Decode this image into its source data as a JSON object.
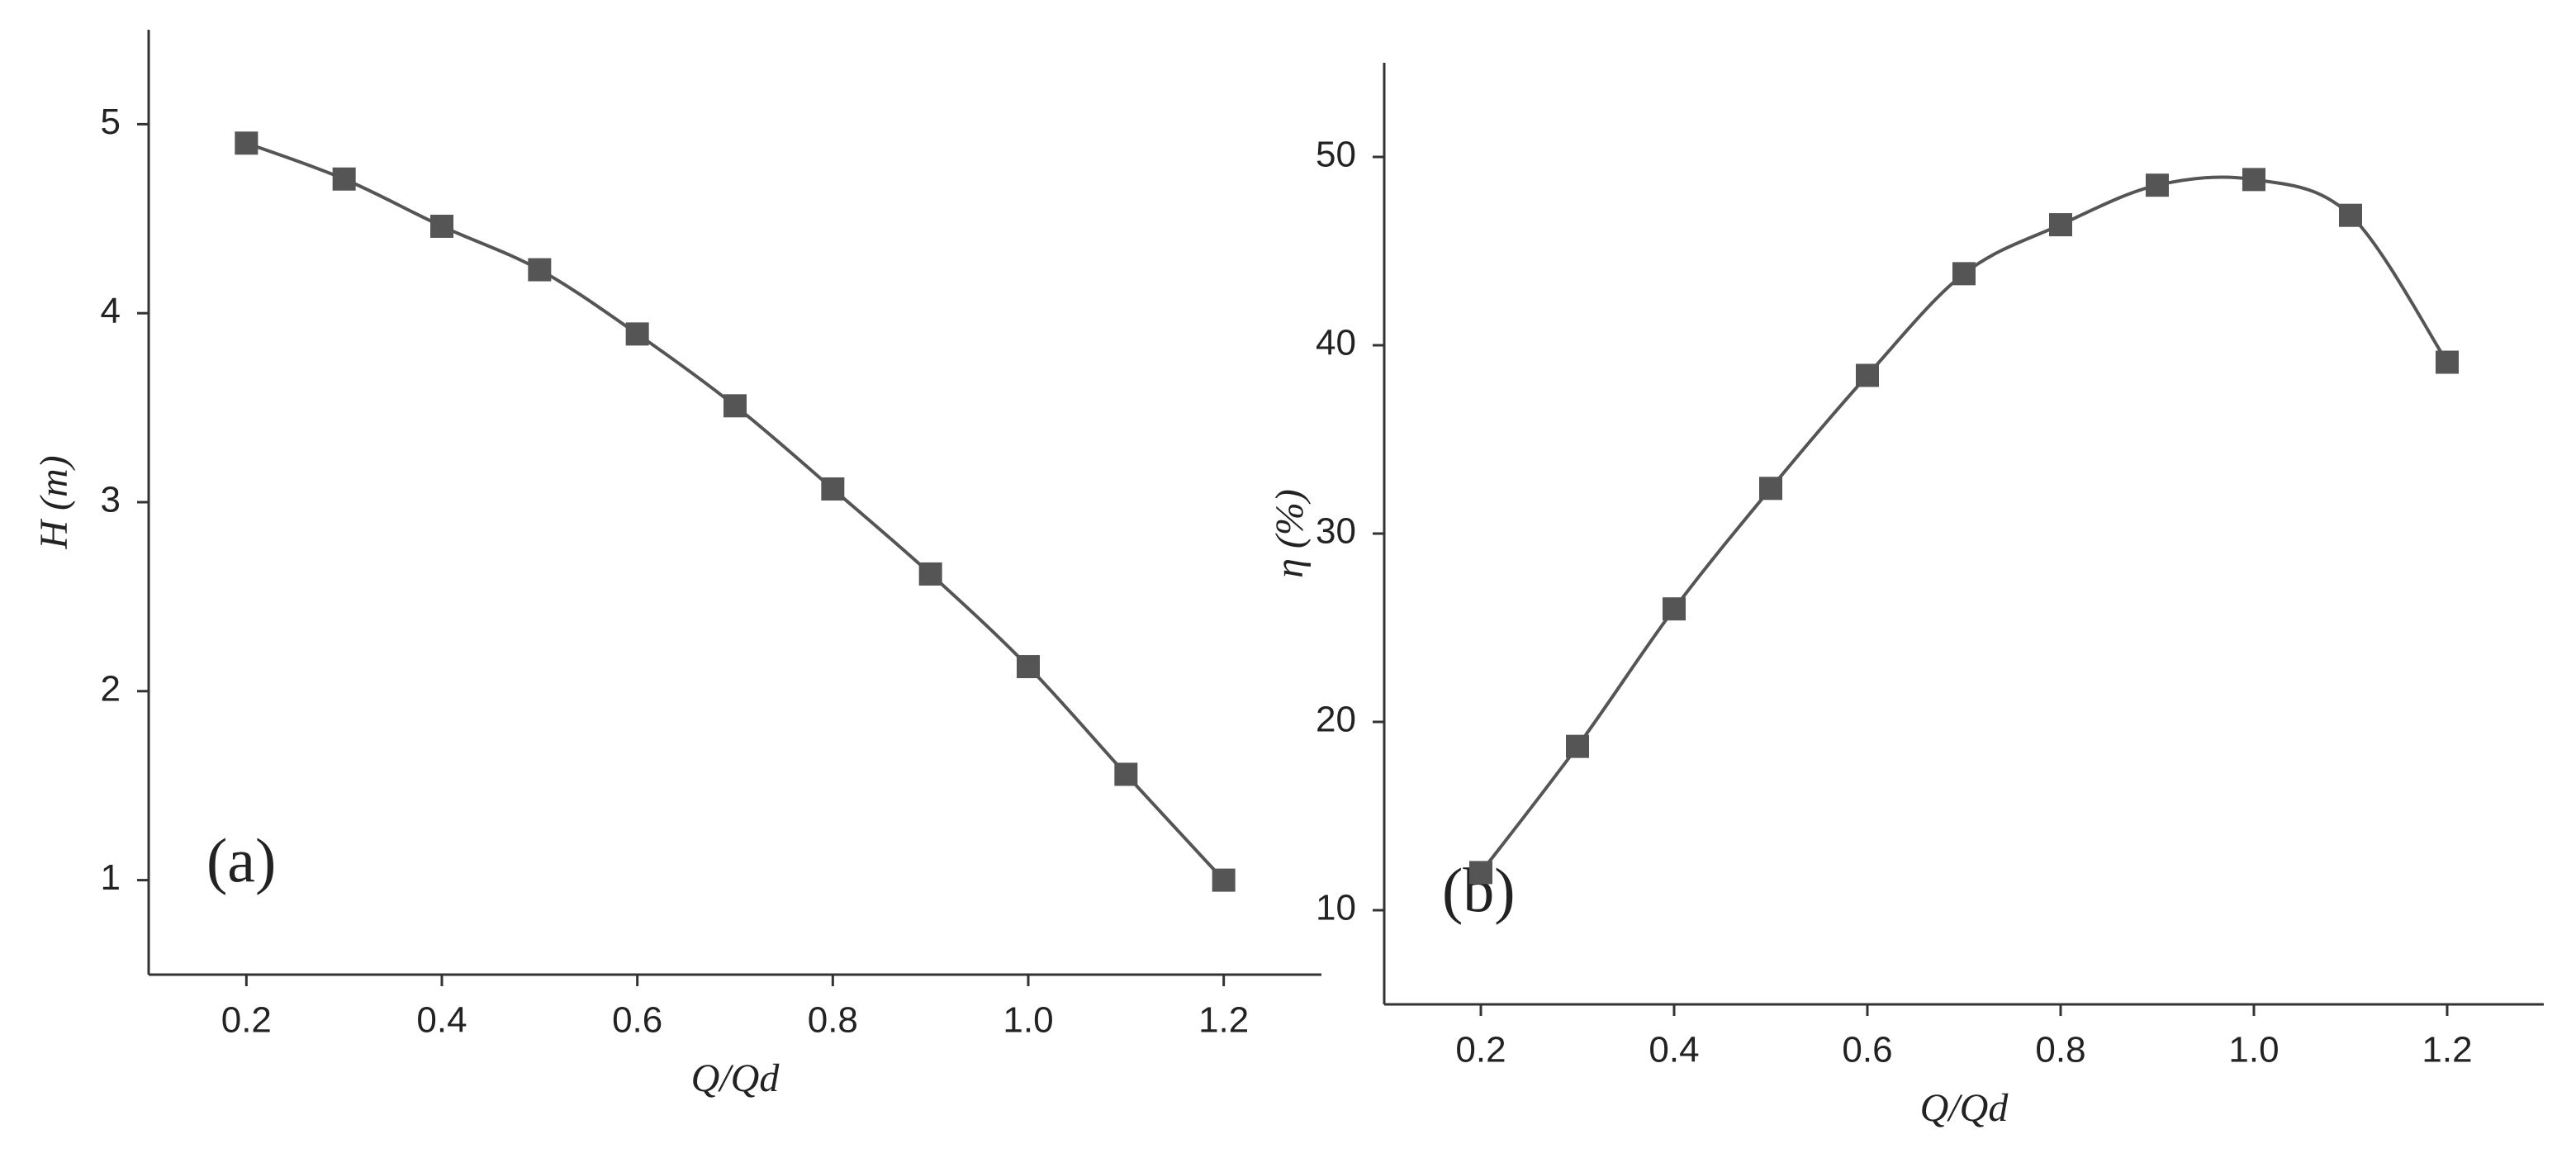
{
  "chart_data": [
    {
      "type": "line",
      "xlabel": "Q/Qd",
      "ylabel": "H (m)",
      "annotation": "(a)",
      "x": [
        0.2,
        0.3,
        0.4,
        0.5,
        0.6,
        0.7,
        0.8,
        0.9,
        1.0,
        1.1,
        1.2
      ],
      "series": [
        {
          "color": "#555555",
          "values": [
            4.9,
            4.71,
            4.46,
            4.23,
            3.89,
            3.51,
            3.07,
            2.62,
            2.13,
            1.56,
            1.0
          ]
        }
      ],
      "xlim": [
        0.1,
        1.3
      ],
      "xticks": [
        0.2,
        0.4,
        0.6,
        0.8,
        {
          "value": 1.0,
          "label": "1.0"
        },
        1.2
      ],
      "ylim": [
        0.5,
        5.5
      ],
      "yticks": [
        1,
        2,
        3,
        4,
        5
      ]
    },
    {
      "type": "line",
      "xlabel": "Q/Qd",
      "ylabel": "η (%)",
      "annotation": "(b)",
      "x": [
        0.2,
        0.3,
        0.4,
        0.5,
        0.6,
        0.7,
        0.8,
        0.9,
        1.0,
        1.1,
        1.2
      ],
      "series": [
        {
          "color": "#555555",
          "values": [
            12,
            18.7,
            26,
            32.4,
            38.4,
            43.8,
            46.4,
            48.5,
            48.8,
            46.9,
            39.1
          ]
        }
      ],
      "xlim": [
        0.1,
        1.3
      ],
      "xticks": [
        0.2,
        0.4,
        0.6,
        0.8,
        {
          "value": 1.0,
          "label": "1.0"
        },
        1.2
      ],
      "ylim": [
        5,
        55
      ],
      "yticks": [
        10,
        20,
        30,
        40,
        50
      ]
    }
  ]
}
